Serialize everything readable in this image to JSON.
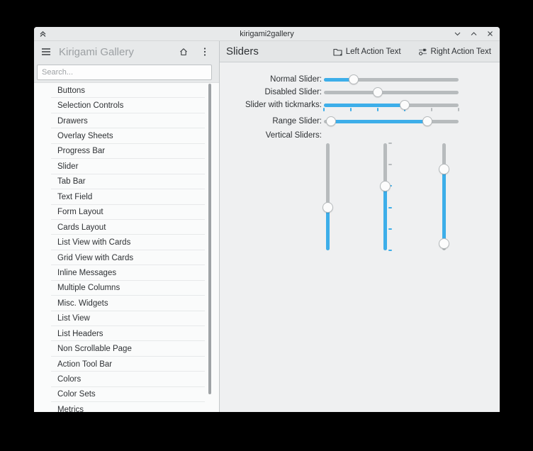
{
  "colors": {
    "accent": "#3daee9",
    "track_gray": "#b7bbbd"
  },
  "titlebar": {
    "title": "kirigami2gallery"
  },
  "sidebar": {
    "header": {
      "title": "Kirigami Gallery"
    },
    "search": {
      "placeholder": "Search..."
    },
    "items": [
      "Buttons",
      "Selection Controls",
      "Drawers",
      "Overlay Sheets",
      "Progress Bar",
      "Slider",
      "Tab Bar",
      "Text Field",
      "Form Layout",
      "Cards Layout",
      "List View with Cards",
      "Grid View with Cards",
      "Inline Messages",
      "Multiple Columns",
      "Misc. Widgets",
      "List View",
      "List Headers",
      "Non Scrollable Page",
      "Action Tool Bar",
      "Colors",
      "Color Sets",
      "Metrics"
    ]
  },
  "content": {
    "title": "Sliders",
    "actions": [
      {
        "label": "Left Action Text",
        "icon": "folder-icon"
      },
      {
        "label": "Right Action Text",
        "icon": "configure-sliders-icon"
      }
    ],
    "sliders": [
      {
        "label": "Normal Slider:",
        "kind": "h",
        "value": 22
      },
      {
        "label": "Disabled Slider:",
        "kind": "h",
        "value": 40,
        "disabled": true
      },
      {
        "label": "Slider with tickmarks:",
        "kind": "h",
        "value": 60,
        "ticks": 6
      },
      {
        "label": "Range Slider:",
        "kind": "hrange",
        "from": 5,
        "to": 77
      },
      {
        "label": "Vertical Sliders:",
        "kind": "vgroup",
        "items": [
          {
            "kind": "v",
            "value": 40
          },
          {
            "kind": "v",
            "value": 60,
            "ticks": 6
          },
          {
            "kind": "vrange",
            "from": 6,
            "to": 76
          }
        ]
      }
    ]
  }
}
